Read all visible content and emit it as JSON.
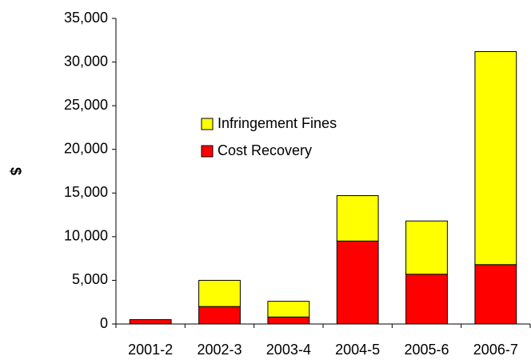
{
  "chart_data": {
    "type": "stacked-bar",
    "y_label": "$",
    "categories": [
      "2001-2",
      "2002-3",
      "2003-4",
      "2004-5",
      "2005-6",
      "2006-7"
    ],
    "series": [
      {
        "name": "Cost Recovery",
        "color": "#ff0000",
        "values": [
          500,
          2000,
          800,
          9500,
          5700,
          6800
        ]
      },
      {
        "name": "Infringement Fines",
        "color": "#ffff00",
        "values": [
          0,
          3000,
          1800,
          5200,
          6100,
          24400
        ]
      }
    ],
    "ylim": [
      0,
      35000
    ],
    "yticks": [
      0,
      {
        "value": 5000,
        "label": "5,000"
      },
      {
        "value": 10000,
        "label": "10,000"
      },
      {
        "value": 15000,
        "label": "15,000"
      },
      {
        "value": 20000,
        "label": "20,000"
      },
      {
        "value": 25000,
        "label": "25,000"
      },
      {
        "value": 30000,
        "label": "30,000"
      },
      {
        "value": 35000,
        "label": "35,000"
      }
    ],
    "legend_position": "upper-center",
    "grid": false
  }
}
